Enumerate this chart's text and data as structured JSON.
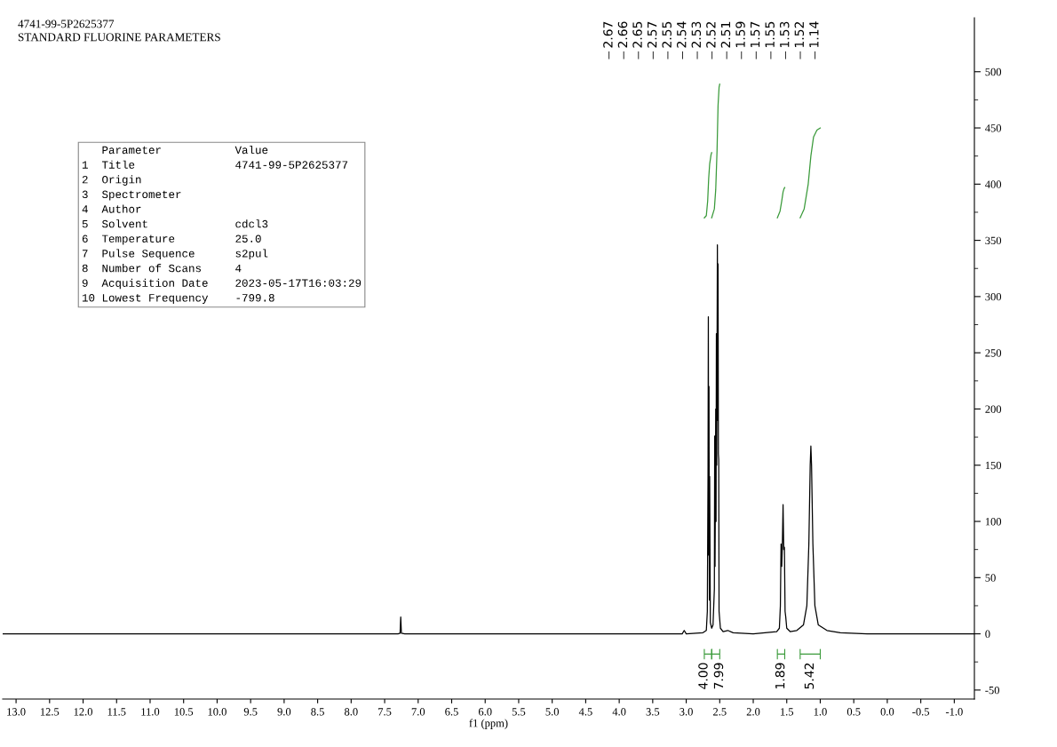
{
  "chart_data": {
    "type": "line",
    "title": "4741-99-5P2625377",
    "subtitle": "STANDARD FLUORINE PARAMETERS",
    "xlabel": "f1 (ppm)",
    "xlim": [
      13.2,
      -1.3
    ],
    "ylim": [
      -58,
      548
    ],
    "xticks": [
      {
        "value": 13,
        "label": "13.0"
      },
      12.5,
      {
        "value": 12,
        "label": "12.0"
      },
      11.5,
      {
        "value": 11,
        "label": "11.0"
      },
      10.5,
      {
        "value": 10,
        "label": "10.0"
      },
      9.5,
      {
        "value": 9,
        "label": "9.0"
      },
      8.5,
      {
        "value": 8,
        "label": "8.0"
      },
      7.5,
      {
        "value": 7,
        "label": "7.0"
      },
      6.5,
      {
        "value": 6,
        "label": "6.0"
      },
      5.5,
      {
        "value": 5,
        "label": "5.0"
      },
      4.5,
      {
        "value": 4,
        "label": "4.0"
      },
      3.5,
      {
        "value": 3,
        "label": "3.0"
      },
      2.5,
      {
        "value": 2,
        "label": "2.0"
      },
      1.5,
      {
        "value": 1,
        "label": "1.0"
      },
      0.5,
      {
        "value": 0,
        "label": "0.0"
      },
      -0.5,
      {
        "value": -1,
        "label": "-1.0"
      }
    ],
    "yticks": [
      -50,
      {
        "value": -25,
        "label": null
      },
      0,
      {
        "value": 25,
        "label": null
      },
      50,
      {
        "value": 75,
        "label": null
      },
      100,
      {
        "value": 125,
        "label": null
      },
      150,
      {
        "value": 175,
        "label": null
      },
      200,
      {
        "value": 225,
        "label": null
      },
      250,
      {
        "value": 275,
        "label": null
      },
      300,
      {
        "value": 325,
        "label": null
      },
      350,
      {
        "value": 375,
        "label": null
      },
      400,
      {
        "value": 425,
        "label": null
      },
      450,
      {
        "value": 475,
        "label": null
      },
      500
    ],
    "series": [
      {
        "type": "line",
        "color": "#000000",
        "x": [
          13.2,
          7.3,
          7.27,
          7.26,
          7.25,
          7.2,
          3.06,
          3.03,
          3.0,
          2.75,
          2.7,
          2.685,
          2.675,
          2.67,
          2.665,
          2.66,
          2.655,
          2.65,
          2.64,
          2.62,
          2.6,
          2.58,
          2.575,
          2.57,
          2.565,
          2.56,
          2.555,
          2.55,
          2.545,
          2.535,
          2.53,
          2.525,
          2.52,
          2.515,
          2.51,
          2.49,
          2.45,
          2.38,
          2.3,
          2.0,
          1.65,
          1.61,
          1.595,
          1.585,
          1.575,
          1.565,
          1.555,
          1.545,
          1.535,
          1.525,
          1.515,
          1.5,
          1.45,
          1.35,
          1.25,
          1.2,
          1.17,
          1.15,
          1.14,
          1.13,
          1.11,
          1.08,
          1.03,
          0.9,
          0.7,
          0.3,
          -1.3
        ],
        "values": [
          0,
          0,
          0.5,
          15,
          0.5,
          0,
          0,
          3,
          0,
          1,
          3,
          20,
          140,
          282,
          70,
          220,
          30,
          140,
          10,
          5,
          8,
          40,
          176,
          60,
          120,
          200,
          100,
          267,
          150,
          346,
          190,
          329,
          160,
          155,
          20,
          5,
          2,
          3,
          1,
          0,
          2,
          5,
          25,
          80,
          60,
          80,
          115,
          75,
          77,
          20,
          15,
          5,
          2,
          3,
          8,
          25,
          80,
          150,
          167,
          150,
          80,
          25,
          8,
          3,
          1,
          0,
          0
        ]
      },
      {
        "type": "line",
        "color": "#3a9a3a",
        "x": [
          2.73,
          2.7,
          2.68,
          2.665,
          2.65,
          2.63,
          2.62
        ],
        "values": [
          370,
          372,
          385,
          405,
          418,
          426,
          428
        ]
      },
      {
        "type": "line",
        "color": "#3a9a3a",
        "x": [
          2.62,
          2.58,
          2.56,
          2.54,
          2.525,
          2.51,
          2.5
        ],
        "values": [
          370,
          378,
          395,
          430,
          470,
          486,
          489
        ]
      },
      {
        "type": "line",
        "color": "#3a9a3a",
        "x": [
          1.64,
          1.6,
          1.575,
          1.555,
          1.54,
          1.53
        ],
        "values": [
          370,
          376,
          385,
          393,
          396,
          397
        ]
      },
      {
        "type": "line",
        "color": "#3a9a3a",
        "x": [
          1.3,
          1.24,
          1.18,
          1.14,
          1.1,
          1.05,
          1.0
        ],
        "values": [
          370,
          378,
          400,
          425,
          442,
          448,
          450
        ]
      }
    ],
    "annotations": [
      "   Parameter           Value\n1  Title               4741-99-5P2625377\n2  Origin\n3  Spectrometer\n4  Author\n5  Solvent             cdcl3\n6  Temperature         25.0\n7  Pulse Sequence      s2pul\n8  Number of Scans     4\n9  Acquisition Date    2023-05-17T16:03:29\n10 Lowest Frequency    -799.8",
      "2.67",
      "2.66",
      "2.65",
      "2.57",
      "2.55",
      "2.54",
      "2.53",
      "2.52",
      "2.51",
      "1.59",
      "1.57",
      "1.55",
      "1.53",
      "1.52",
      "1.14",
      "4.00",
      "7.99",
      "1.89",
      "5.42"
    ]
  }
}
